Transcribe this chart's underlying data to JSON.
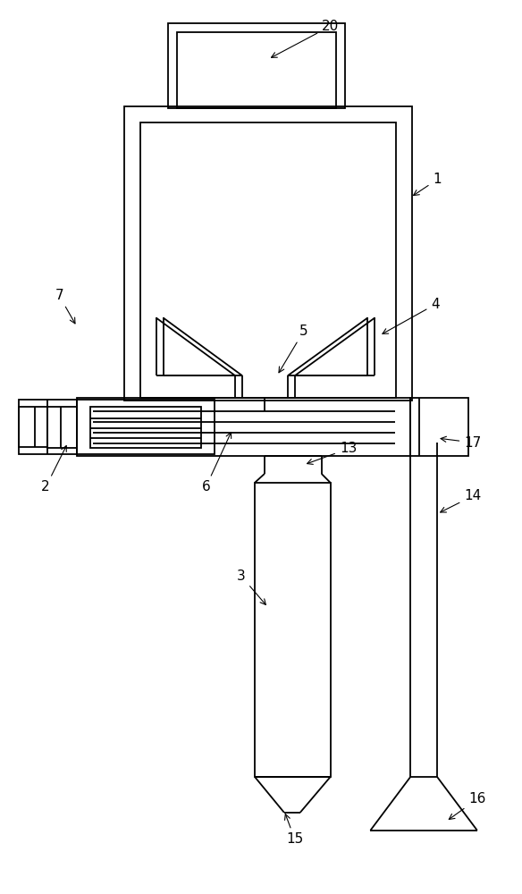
{
  "bg_color": "#ffffff",
  "line_color": "#000000",
  "lw": 1.3,
  "fig_width": 5.84,
  "fig_height": 10.0
}
